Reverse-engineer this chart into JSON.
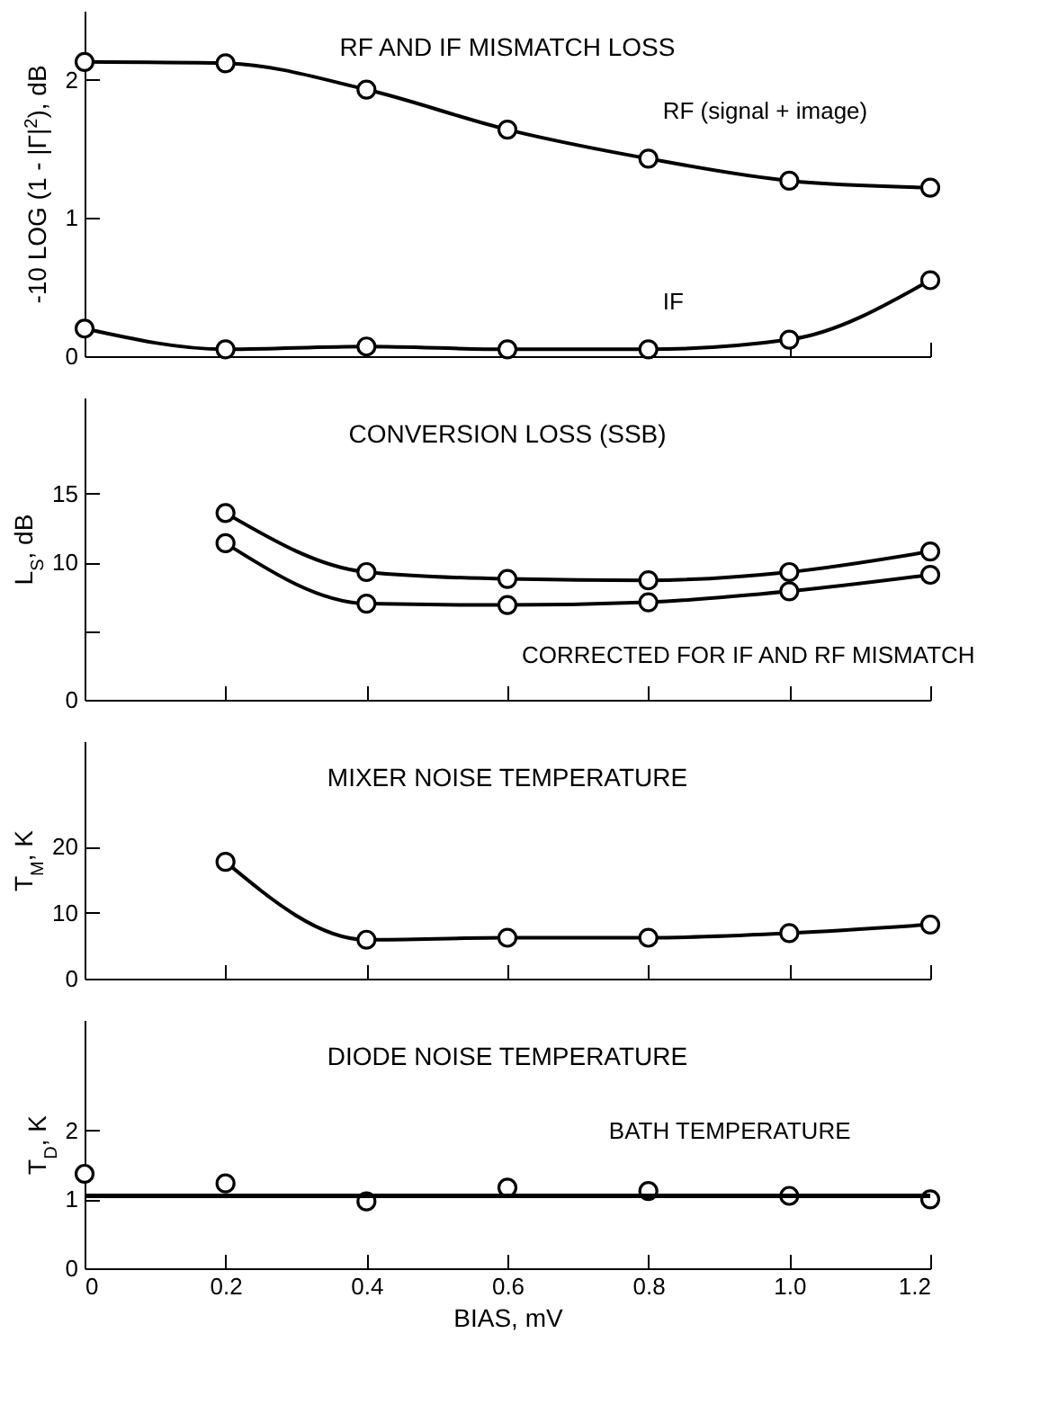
{
  "chart_data": [
    {
      "type": "line",
      "title": "RF AND IF MISMATCH LOSS",
      "ylabel": "-10 LOG (1 - |Γ|$^{2}$), dB",
      "x": [
        0,
        0.2,
        0.4,
        0.6,
        0.8,
        1.0,
        1.2
      ],
      "xlim": [
        0,
        1.2
      ],
      "xticks": [
        0,
        0.2,
        0.4,
        0.6,
        0.8,
        1,
        1.2
      ],
      "ylim": [
        0,
        2.5
      ],
      "yticks": [
        0,
        1,
        2
      ],
      "tick_labels": "y",
      "marker": "circle",
      "grid": false,
      "series": [
        {
          "name": "RF (signal + image)",
          "color": "#000000",
          "values": [
            2.13,
            2.12,
            1.93,
            1.64,
            1.43,
            1.27,
            1.22
          ]
        },
        {
          "name": "IF",
          "color": "#000000",
          "values": [
            0.2,
            0.05,
            0.07,
            0.05,
            0.05,
            0.12,
            0.55
          ]
        }
      ]
    },
    {
      "type": "line",
      "title": "CONVERSION LOSS (SSB)",
      "ylabel": "L$_{S}$, dB",
      "x": [
        0.2,
        0.4,
        0.6,
        0.8,
        1.0,
        1.2
      ],
      "xlim": [
        0,
        1.2
      ],
      "xticks": [
        0,
        0.2,
        0.4,
        0.6,
        0.8,
        1,
        1.2
      ],
      "ylim": [
        0,
        22
      ],
      "yticks": [
        0,
        {
          "value": 5,
          "label": null
        },
        10,
        15
      ],
      "tick_labels": "y",
      "marker": "circle",
      "grid": false,
      "series": [
        {
          "color": "#000000",
          "values": [
            13.6,
            9.3,
            8.8,
            8.7,
            9.3,
            10.8
          ]
        },
        {
          "name": "CORRECTED FOR IF AND RF MISMATCH",
          "color": "#000000",
          "values": [
            11.4,
            7.0,
            6.9,
            7.1,
            7.9,
            9.1
          ]
        }
      ]
    },
    {
      "type": "line",
      "title": "MIXER NOISE TEMPERATURE",
      "ylabel": "T$_{M}$, K",
      "x": [
        0.2,
        0.4,
        0.6,
        0.8,
        1.0,
        1.2
      ],
      "xlim": [
        0,
        1.2
      ],
      "xticks": [
        0,
        0.2,
        0.4,
        0.6,
        0.8,
        1,
        1.2
      ],
      "ylim": [
        0,
        36
      ],
      "yticks": [
        0,
        10,
        20
      ],
      "tick_labels": "y",
      "marker": "circle",
      "grid": false,
      "series": [
        {
          "color": "#000000",
          "values": [
            17.7,
            5.9,
            6.2,
            6.2,
            6.9,
            8.2
          ]
        }
      ]
    },
    {
      "type": "scatter",
      "title": "DIODE NOISE TEMPERATURE",
      "ylabel": "T$_{D}$, K",
      "xlabel": "BIAS, mV",
      "x": [
        0,
        0.2,
        0.4,
        0.6,
        0.8,
        1.0,
        1.2
      ],
      "xlim": [
        0,
        1.2
      ],
      "xticks": [
        0,
        0.2,
        0.4,
        0.6,
        0.8,
        {
          "value": 1.0,
          "label": "1.0"
        },
        1.2
      ],
      "ylim": [
        0,
        3.6
      ],
      "yticks": [
        0,
        1,
        2
      ],
      "marker": "circle",
      "grid": false,
      "series": [
        {
          "color": "#000000",
          "values": [
            1.37,
            1.23,
            0.97,
            1.17,
            1.12,
            1.05,
            1.0
          ]
        }
      ],
      "ref_lines": [
        {
          "axis": "y",
          "value": 1.05,
          "label": "BATH TEMPERATURE",
          "color": "#000000"
        }
      ]
    }
  ]
}
